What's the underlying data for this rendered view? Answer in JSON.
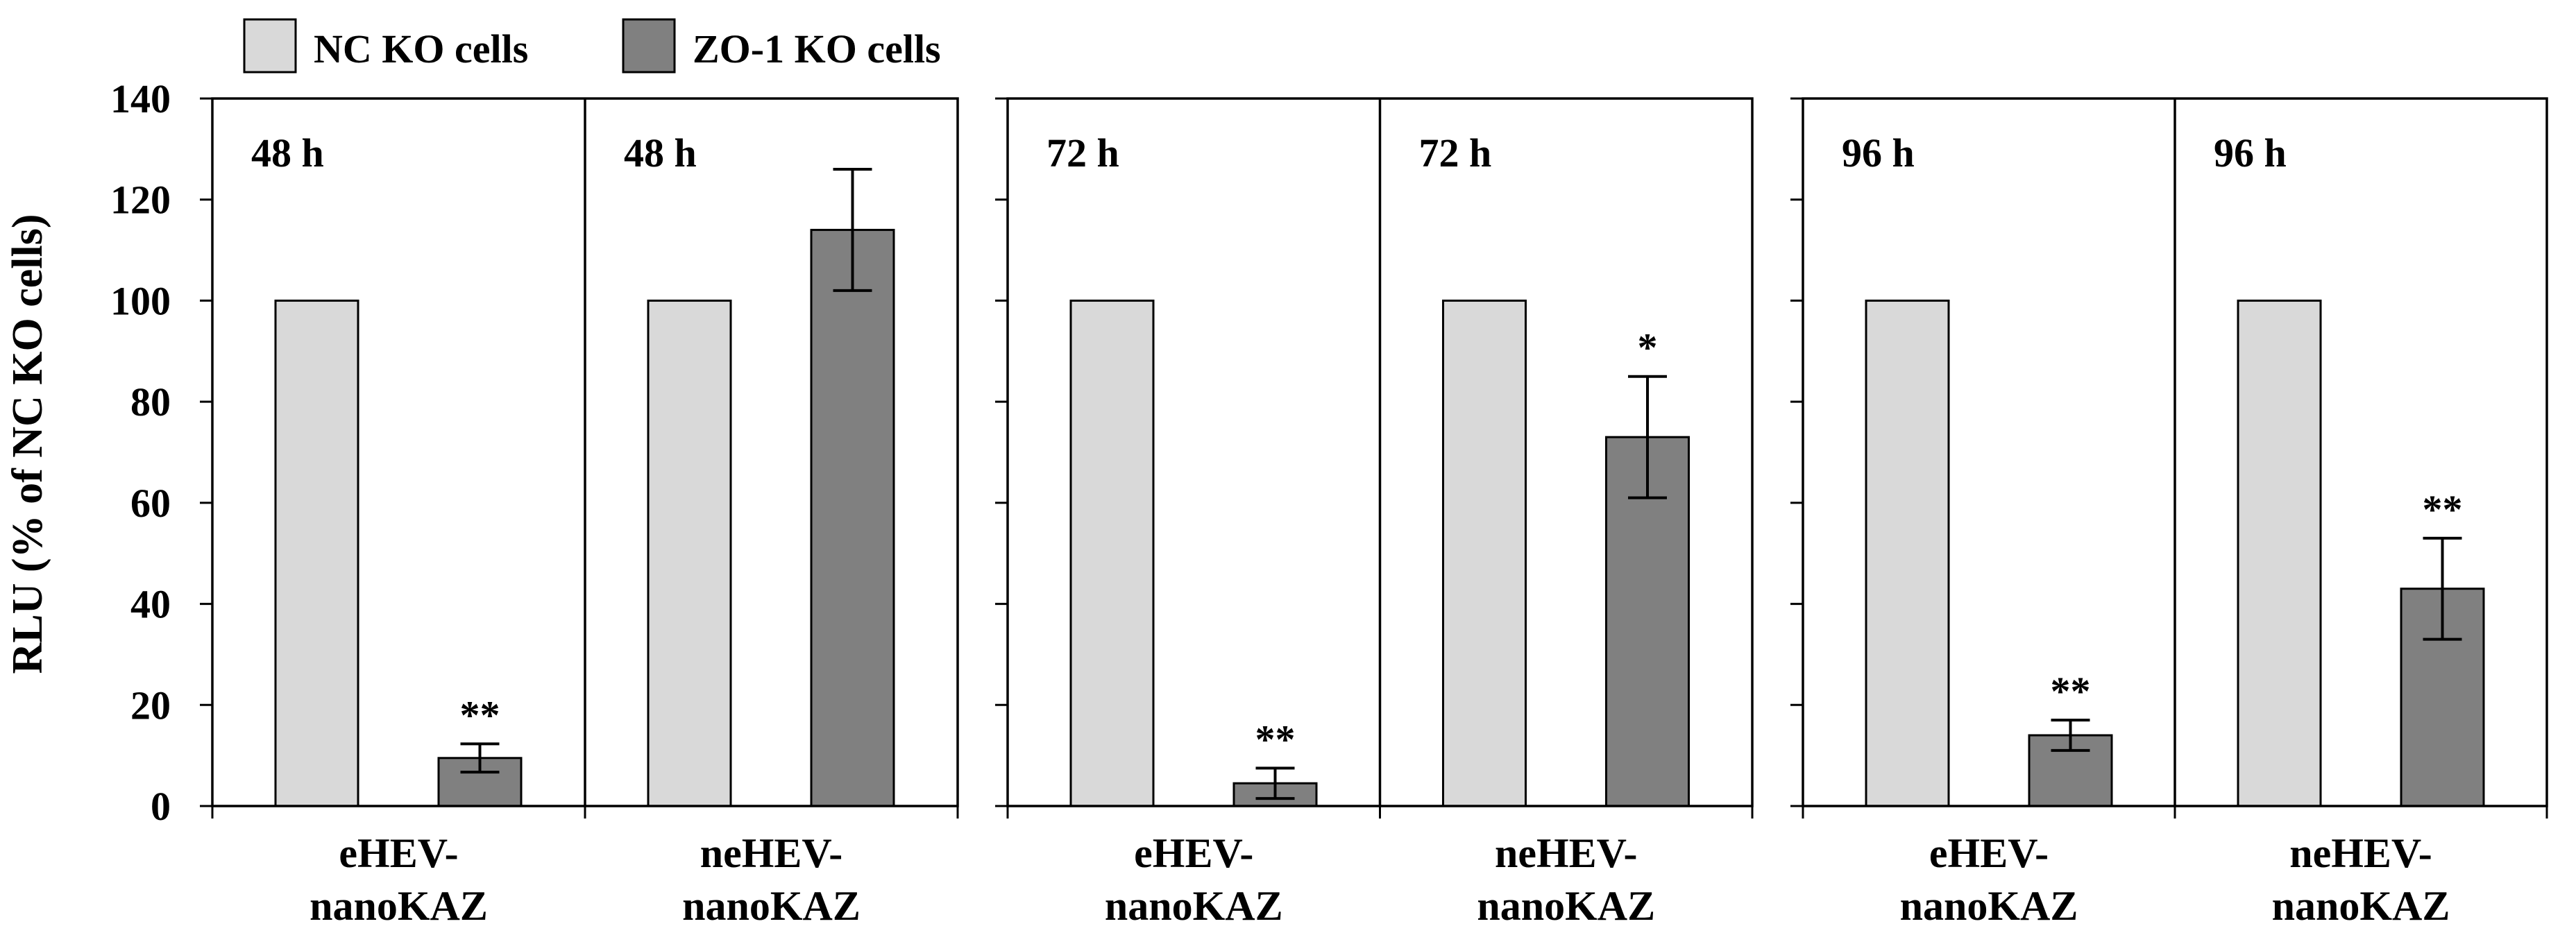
{
  "chart_data": {
    "type": "bar",
    "ylabel": "RLU (% of NC KO cells)",
    "ylim": [
      0,
      140
    ],
    "yticks": [
      0,
      20,
      40,
      60,
      80,
      100,
      120,
      140
    ],
    "legend": {
      "placement": "top-left",
      "items": [
        {
          "name": "NC KO cells",
          "color": "#d9d9d9"
        },
        {
          "name": "ZO-1 KO cells",
          "color": "#808080"
        }
      ]
    },
    "groups": [
      {
        "panels": [
          {
            "time": "48 h",
            "category": [
              "eHEV-",
              "nanoKAZ"
            ],
            "nc": 100,
            "zo1": 9.5,
            "zo1_err": 2.8,
            "sig": "**"
          },
          {
            "time": "48 h",
            "category": [
              "neHEV-",
              "nanoKAZ"
            ],
            "nc": 100,
            "zo1": 114,
            "zo1_err": 12,
            "sig": ""
          }
        ]
      },
      {
        "panels": [
          {
            "time": "72 h",
            "category": [
              "eHEV-",
              "nanoKAZ"
            ],
            "nc": 100,
            "zo1": 4.5,
            "zo1_err": 3,
            "sig": "**"
          },
          {
            "time": "72 h",
            "category": [
              "neHEV-",
              "nanoKAZ"
            ],
            "nc": 100,
            "zo1": 73,
            "zo1_err": 12,
            "sig": "*"
          }
        ]
      },
      {
        "panels": [
          {
            "time": "96 h",
            "category": [
              "eHEV-",
              "nanoKAZ"
            ],
            "nc": 100,
            "zo1": 14,
            "zo1_err": 3,
            "sig": "**"
          },
          {
            "time": "96 h",
            "category": [
              "neHEV-",
              "nanoKAZ"
            ],
            "nc": 100,
            "zo1": 43,
            "zo1_err": 10,
            "sig": "**"
          }
        ]
      }
    ]
  }
}
